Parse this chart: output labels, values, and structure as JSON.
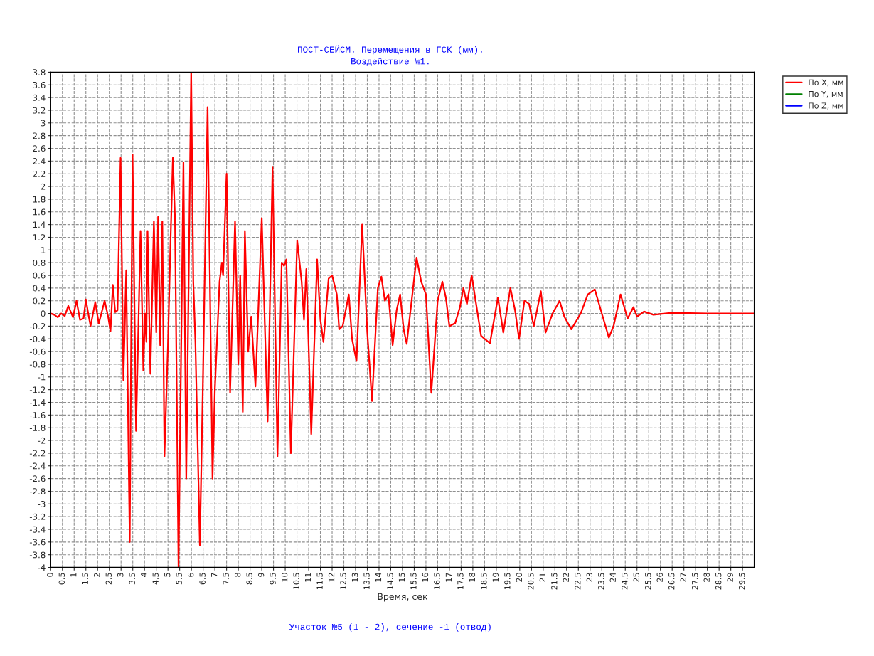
{
  "chart_data": {
    "type": "line",
    "title": "ПОСТ-СЕЙСМ. Перемещения в ГСК (мм).",
    "subtitle": "Воздействие №1.",
    "xlabel": "Время, сек",
    "annotations": [
      "Участок №5 (1 - 2), сечение -1 (отвод)"
    ],
    "xlim": [
      0,
      30
    ],
    "xticks": [
      0,
      0.5,
      1,
      1.5,
      2,
      2.5,
      3,
      3.5,
      4,
      4.5,
      5,
      5.5,
      6,
      6.5,
      7,
      7.5,
      8,
      8.5,
      9,
      9.5,
      10,
      10.5,
      11,
      11.5,
      12,
      12.5,
      13,
      13.5,
      14,
      14.5,
      15,
      15.5,
      16,
      16.5,
      17,
      17.5,
      18,
      18.5,
      19,
      19.5,
      20,
      20.5,
      21,
      21.5,
      22,
      22.5,
      23,
      23.5,
      24,
      24.5,
      25,
      25.5,
      26,
      26.5,
      27,
      27.5,
      28,
      28.5,
      29,
      29.5
    ],
    "ylim": [
      -4,
      3.8
    ],
    "yticks": [
      -4,
      -3.8,
      -3.6,
      -3.4,
      -3.2,
      -3,
      -2.8,
      -2.6,
      -2.4,
      -2.2,
      -2,
      -1.8,
      -1.6,
      -1.4,
      -1.2,
      -1,
      -0.8,
      -0.6,
      -0.4,
      -0.2,
      0,
      0.2,
      0.4,
      0.6,
      0.8,
      1,
      1.2,
      1.4,
      1.6,
      1.8,
      2,
      2.2,
      2.4,
      2.6,
      2.8,
      3,
      3.2,
      3.4,
      3.6,
      3.8
    ],
    "grid": true,
    "legend": "top right",
    "line_style": "solid",
    "series": [
      {
        "name": "По X, мм",
        "color": "#ff0000",
        "x": [
          0,
          0.15,
          0.3,
          0.45,
          0.6,
          0.75,
          0.95,
          1.1,
          1.25,
          1.4,
          1.5,
          1.6,
          1.7,
          1.9,
          2.05,
          2.3,
          2.45,
          2.55,
          2.65,
          2.75,
          2.85,
          2.98,
          3.1,
          3.22,
          3.37,
          3.49,
          3.64,
          3.83,
          3.95,
          4.02,
          4.08,
          4.13,
          4.25,
          4.4,
          4.5,
          4.58,
          4.67,
          4.76,
          4.85,
          5.0,
          5.1,
          5.21,
          5.3,
          5.45,
          5.66,
          5.78,
          5.99,
          6.08,
          6.17,
          6.36,
          6.48,
          6.69,
          6.9,
          7.0,
          7.2,
          7.3,
          7.35,
          7.5,
          7.65,
          7.86,
          8.0,
          8.08,
          8.19,
          8.28,
          8.42,
          8.55,
          8.73,
          9.0,
          9.25,
          9.46,
          9.67,
          9.85,
          9.95,
          10.05,
          10.24,
          10.51,
          10.7,
          10.8,
          10.9,
          11.11,
          11.36,
          11.5,
          11.63,
          11.85,
          12.0,
          12.2,
          12.3,
          12.45,
          12.71,
          12.85,
          13.04,
          13.28,
          13.5,
          13.7,
          13.95,
          14.1,
          14.25,
          14.4,
          14.58,
          14.75,
          14.9,
          15.05,
          15.18,
          15.6,
          15.8,
          16.0,
          16.23,
          16.5,
          16.7,
          16.85,
          17.0,
          17.25,
          17.45,
          17.6,
          17.75,
          17.95,
          18.35,
          18.73,
          19.07,
          19.3,
          19.6,
          19.8,
          19.97,
          20.2,
          20.4,
          20.6,
          20.9,
          21.1,
          21.4,
          21.7,
          21.9,
          22.2,
          22.6,
          22.9,
          23.2,
          23.5,
          23.8,
          24.0,
          24.3,
          24.6,
          24.85,
          25.0,
          25.3,
          25.7,
          26.5,
          28,
          30
        ],
        "values": [
          0,
          -0.02,
          -0.06,
          0.0,
          -0.04,
          0.12,
          -0.06,
          0.2,
          -0.1,
          -0.08,
          0.22,
          0.0,
          -0.2,
          0.18,
          -0.16,
          0.2,
          -0.05,
          -0.28,
          0.45,
          0.02,
          0.05,
          2.45,
          -1.05,
          0.68,
          -3.6,
          2.5,
          -1.85,
          1.3,
          -0.9,
          0.0,
          -0.45,
          1.3,
          -0.95,
          1.45,
          -0.3,
          1.52,
          -0.5,
          1.45,
          -2.25,
          -0.5,
          1.0,
          2.45,
          1.5,
          -4.0,
          2.38,
          -2.6,
          3.8,
          0.5,
          -0.45,
          -3.65,
          -1.3,
          3.25,
          -2.6,
          -1.2,
          0.5,
          0.8,
          0.6,
          2.2,
          -1.25,
          1.45,
          -0.8,
          0.6,
          -1.55,
          1.3,
          -0.6,
          -0.05,
          -1.15,
          1.5,
          -1.7,
          2.3,
          -2.25,
          0.8,
          0.75,
          0.85,
          -2.2,
          1.15,
          0.5,
          -0.1,
          0.7,
          -1.9,
          0.85,
          -0.1,
          -0.45,
          0.55,
          0.6,
          0.3,
          -0.25,
          -0.2,
          0.3,
          -0.4,
          -0.75,
          1.4,
          -0.3,
          -1.38,
          0.4,
          0.58,
          0.2,
          0.3,
          -0.5,
          0.05,
          0.3,
          -0.25,
          -0.48,
          0.88,
          0.5,
          0.3,
          -1.25,
          0.2,
          0.5,
          0.25,
          -0.2,
          -0.15,
          0.1,
          0.4,
          0.15,
          0.6,
          -0.35,
          -0.47,
          0.25,
          -0.3,
          0.4,
          0.05,
          -0.4,
          0.2,
          0.15,
          -0.2,
          0.35,
          -0.3,
          0.0,
          0.2,
          -0.05,
          -0.25,
          0.0,
          0.3,
          0.38,
          0.0,
          -0.38,
          -0.2,
          0.3,
          -0.08,
          0.1,
          -0.05,
          0.03,
          -0.02,
          0.01,
          0,
          0
        ]
      },
      {
        "name": "По Y, мм",
        "color": "#008000"
      },
      {
        "name": "По Z, мм",
        "color": "#0000ff"
      }
    ]
  }
}
